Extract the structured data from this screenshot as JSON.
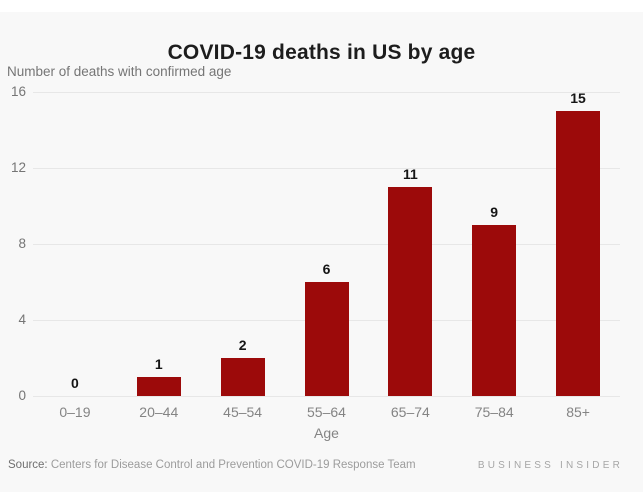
{
  "page": {
    "title": "COVID-19 deaths in US by age",
    "subtitle": "Number of deaths with confirmed age",
    "source_label": "Source:",
    "source_text": " Centers for Disease Control and Prevention COVID-19 Response Team",
    "brand": "BUSINESS INSIDER"
  },
  "colors": {
    "background": "#f8f8f8",
    "bar": "#9c0a0a",
    "gridline": "#e7e7e7",
    "title_text": "#1d1d1d",
    "muted_text": "#848484"
  },
  "chart_data": {
    "type": "bar",
    "title": "COVID-19 deaths in US by age",
    "subtitle": "Number of deaths with confirmed age",
    "categories": [
      "0–19",
      "20–44",
      "45–54",
      "55–64",
      "65–74",
      "75–84",
      "85+"
    ],
    "values": [
      0,
      1,
      2,
      6,
      11,
      9,
      15
    ],
    "xlabel": "Age",
    "ylabel": "Number of deaths with confirmed age",
    "yticks": [
      0,
      4,
      8,
      12,
      16
    ],
    "ylim": [
      0,
      16
    ],
    "grid": true,
    "legend": "none",
    "bar_color": "#9c0a0a",
    "value_labels": true
  }
}
